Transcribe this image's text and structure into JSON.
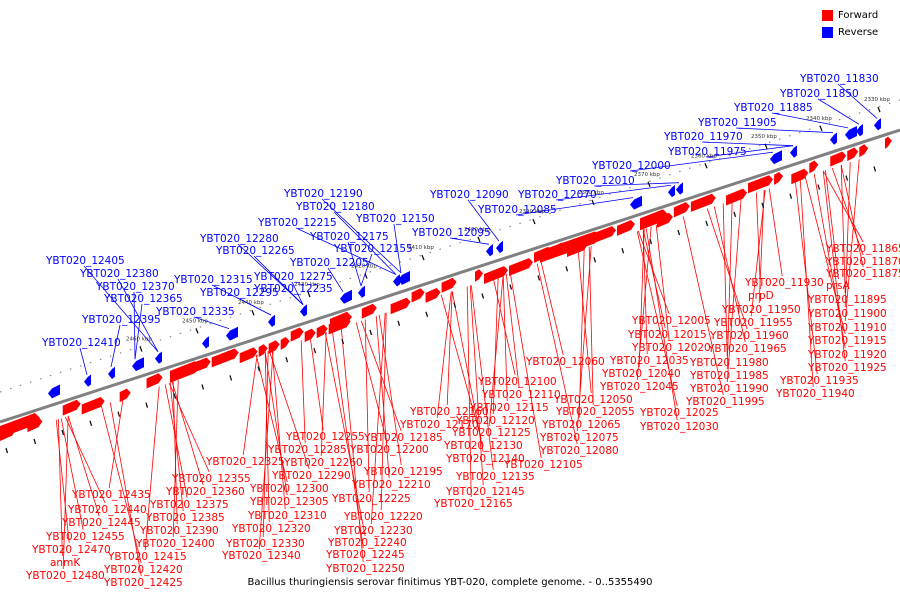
{
  "colors": {
    "forward": "#ff0000",
    "reverse": "#0000ff",
    "backbone": "#808080",
    "tick": "#000000"
  },
  "legend": [
    {
      "label": "Forward",
      "color": "#ff0000"
    },
    {
      "label": "Reverse",
      "color": "#0000ff"
    }
  ],
  "caption": "Bacillus thuringiensis serovar finitimus YBT-020, complete genome. - 0..5355490",
  "ticks": [
    "2330 kbp",
    "2340 kbp",
    "2350 kbp",
    "2360 kbp",
    "2370 kbp",
    "2380 kbp",
    "2390 kbp",
    "2400 kbp",
    "2410 kbp",
    "2420 kbp",
    "2430 kbp",
    "2440 kbp",
    "2450 kbp",
    "2460 kbp"
  ],
  "reverse_labels": [
    "YBT020_11830",
    "YBT020_11850",
    "YBT020_11885",
    "YBT020_11905",
    "YBT020_11970",
    "YBT020_11975",
    "YBT020_12000",
    "YBT020_12010",
    "YBT020_12070",
    "YBT020_12090",
    "YBT020_12085",
    "YBT020_12095",
    "YBT020_12190",
    "YBT020_12180",
    "YBT020_12150",
    "YBT020_12215",
    "YBT020_12175",
    "YBT020_12155",
    "YBT020_12280",
    "YBT020_12265",
    "YBT020_12205",
    "YBT020_12275",
    "YBT020_12235",
    "YBT020_12315",
    "YBT020_12295",
    "YBT020_12335",
    "YBT020_12405",
    "YBT020_12380",
    "YBT020_12370",
    "YBT020_12365",
    "YBT020_12395",
    "YBT020_12410"
  ],
  "forward_labels": [
    "YBT020_11865",
    "YBT020_11870",
    "YBT020_11875",
    "prsA",
    "YBT020_11895",
    "YBT020_11900",
    "YBT020_11910",
    "YBT020_11915",
    "YBT020_11920",
    "YBT020_11925",
    "YBT020_11930",
    "prpD",
    "YBT020_11950",
    "YBT020_11955",
    "YBT020_11960",
    "YBT020_11965",
    "YBT020_11935",
    "YBT020_11940",
    "YBT020_11980",
    "YBT020_11985",
    "YBT020_11990",
    "YBT020_11995",
    "YBT020_12005",
    "YBT020_12015",
    "YBT020_12020",
    "YBT020_12035",
    "YBT020_12040",
    "YBT020_12045",
    "YBT020_12025",
    "YBT020_12030",
    "YBT020_12060",
    "YBT020_12050",
    "YBT020_12055",
    "YBT020_12065",
    "YBT020_12075",
    "YBT020_12080",
    "YBT020_12105",
    "YBT020_12100",
    "YBT020_12110",
    "YBT020_12115",
    "YBT020_12120",
    "YBT020_12125",
    "YBT020_12130",
    "YBT020_12140",
    "YBT020_12135",
    "YBT020_12145",
    "YBT020_12165",
    "YBT020_12160",
    "YBT020_12170",
    "YBT020_12185",
    "YBT020_12200",
    "YBT020_12195",
    "YBT020_12210",
    "YBT020_12225",
    "YBT020_12220",
    "YBT020_12230",
    "YBT020_12240",
    "YBT020_12245",
    "YBT020_12250",
    "YBT020_12255",
    "YBT020_12285",
    "YBT020_12260",
    "YBT020_12325",
    "YBT020_12290",
    "YBT020_12300",
    "YBT020_12305",
    "YBT020_12310",
    "YBT020_12320",
    "YBT020_12330",
    "YBT020_12340",
    "YBT020_12355",
    "YBT020_12360",
    "YBT020_12375",
    "YBT020_12385",
    "YBT020_12390",
    "YBT020_12400",
    "YBT020_12435",
    "YBT020_12440",
    "YBT020_12445",
    "YBT020_12455",
    "YBT020_12470",
    "anmK",
    "YBT020_12480",
    "YBT020_12415",
    "YBT020_12420",
    "YBT020_12425"
  ]
}
